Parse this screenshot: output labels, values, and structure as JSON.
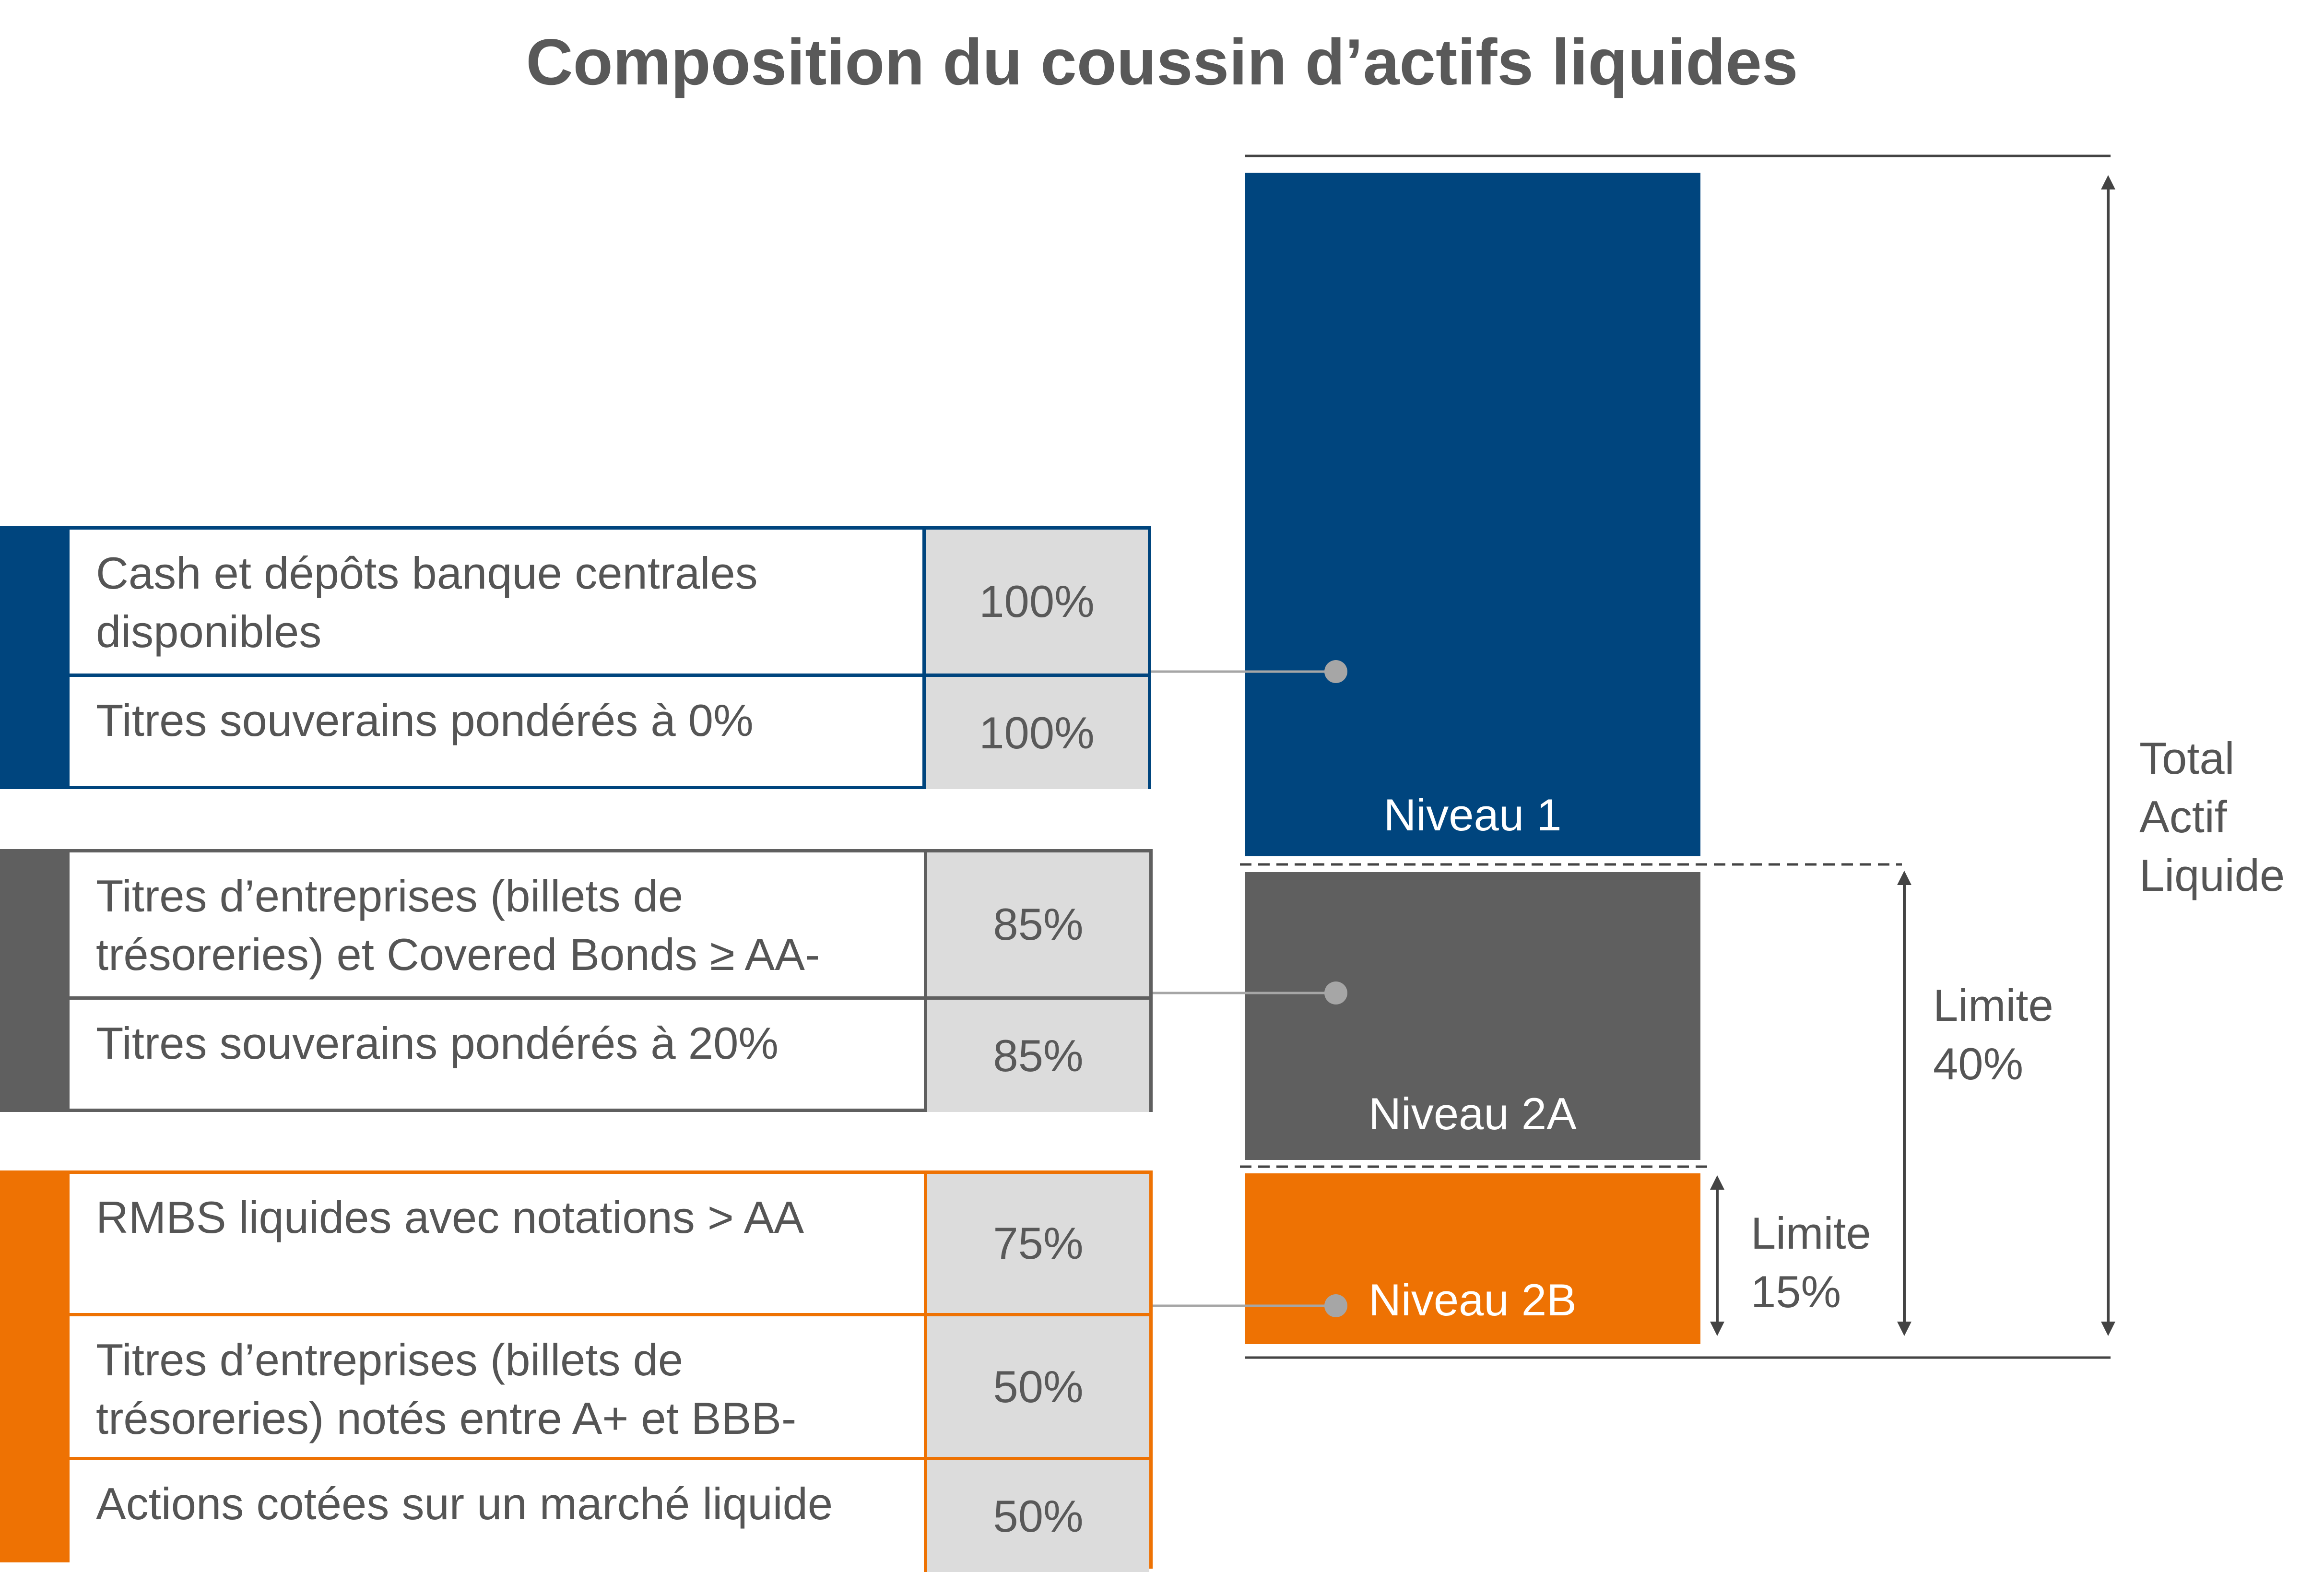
{
  "title": "Composition du coussin d’actifs liquides",
  "colors": {
    "niveau1": "#00457e",
    "niveau2a": "#5f5f5f",
    "niveau2b": "#ee7203",
    "cell_fill": "#dcdcdc",
    "text": "#555555"
  },
  "groups": [
    {
      "level": "Niveau 1",
      "rows": [
        {
          "label": "Cash et dépôts banque centrales disponibles",
          "pct": "100%"
        },
        {
          "label": "Titres souverains pondérés à 0%",
          "pct": "100%"
        }
      ]
    },
    {
      "level": "Niveau 2A",
      "rows": [
        {
          "label": "Titres d’entreprises (billets de trésoreries) et Covered Bonds  ≥ AA-",
          "pct": "85%"
        },
        {
          "label": "Titres souverains pondérés à 20%",
          "pct": "85%"
        }
      ]
    },
    {
      "level": "Niveau 2B",
      "rows": [
        {
          "label": "RMBS liquides avec notations > AA",
          "pct": "75%"
        },
        {
          "label": "Titres d’entreprises (billets de trésoreries) notés entre A+ et BBB-",
          "pct": "50%"
        },
        {
          "label": "Actions cotées sur un marché liquide",
          "pct": "50%"
        }
      ]
    }
  ],
  "bars": {
    "niveau1": "Niveau 1",
    "niveau2a": "Niveau 2A",
    "niveau2b": "Niveau 2B"
  },
  "annotations": {
    "total": "Total Actif Liquide",
    "limit_40": "Limite 40%",
    "limit_15": "Limite 15%"
  }
}
